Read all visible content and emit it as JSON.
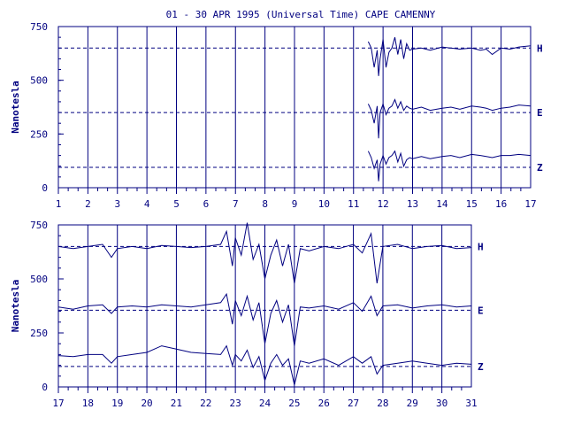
{
  "chart_data": {
    "type": "line",
    "title": "01 - 30 APR 1995 (Universal Time) CAPE CAMENNY",
    "ylabel": "Nanotesla",
    "color": "#000080",
    "panels": [
      {
        "xlim": [
          1,
          17
        ],
        "ylim": [
          0,
          750
        ],
        "x_ticks": [
          1,
          2,
          3,
          4,
          5,
          6,
          7,
          8,
          9,
          10,
          11,
          12,
          13,
          14,
          15,
          16,
          17
        ],
        "y_ticks": [
          0,
          250,
          500,
          750
        ],
        "baselines": [
          {
            "name": "H",
            "value": 650
          },
          {
            "name": "E",
            "value": 350
          },
          {
            "name": "Z",
            "value": 95
          }
        ],
        "series": [
          {
            "name": "H",
            "x": [
              11.5,
              11.6,
              11.7,
              11.8,
              11.85,
              11.9,
              12.0,
              12.1,
              12.2,
              12.3,
              12.4,
              12.5,
              12.6,
              12.7,
              12.8,
              12.9,
              13.0,
              13.3,
              13.6,
              14.0,
              14.3,
              14.6,
              15.0,
              15.3,
              15.5,
              15.7,
              16.0,
              16.3,
              16.6,
              17.0
            ],
            "y": [
              680,
              650,
              560,
              640,
              520,
              600,
              690,
              560,
              630,
              650,
              700,
              620,
              690,
              600,
              670,
              640,
              645,
              650,
              640,
              655,
              650,
              645,
              650,
              640,
              645,
              620,
              650,
              645,
              655,
              660
            ]
          },
          {
            "name": "E",
            "x": [
              11.5,
              11.6,
              11.7,
              11.8,
              11.85,
              11.9,
              12.0,
              12.1,
              12.2,
              12.3,
              12.4,
              12.5,
              12.6,
              12.7,
              12.8,
              12.9,
              13.0,
              13.3,
              13.6,
              14.0,
              14.3,
              14.6,
              15.0,
              15.3,
              15.5,
              15.7,
              16.0,
              16.3,
              16.6,
              17.0
            ],
            "y": [
              390,
              360,
              300,
              380,
              230,
              350,
              390,
              340,
              370,
              380,
              410,
              370,
              400,
              360,
              380,
              370,
              365,
              375,
              360,
              370,
              375,
              365,
              380,
              375,
              370,
              360,
              370,
              375,
              385,
              380
            ]
          },
          {
            "name": "Z",
            "x": [
              11.5,
              11.6,
              11.7,
              11.8,
              11.85,
              11.9,
              12.0,
              12.1,
              12.2,
              12.3,
              12.4,
              12.5,
              12.6,
              12.7,
              12.8,
              12.9,
              13.0,
              13.3,
              13.6,
              14.0,
              14.3,
              14.6,
              15.0,
              15.3,
              15.5,
              15.7,
              16.0,
              16.3,
              16.6,
              17.0
            ],
            "y": [
              170,
              140,
              90,
              130,
              30,
              110,
              150,
              110,
              140,
              150,
              170,
              120,
              160,
              100,
              130,
              140,
              135,
              145,
              135,
              145,
              150,
              140,
              155,
              150,
              145,
              140,
              150,
              150,
              155,
              150
            ]
          }
        ]
      },
      {
        "xlim": [
          17,
          31
        ],
        "ylim": [
          0,
          750
        ],
        "x_ticks": [
          17,
          18,
          19,
          20,
          21,
          22,
          23,
          24,
          25,
          26,
          27,
          28,
          29,
          30,
          31
        ],
        "y_ticks": [
          0,
          250,
          500,
          750
        ],
        "baselines": [
          {
            "name": "H",
            "value": 650
          },
          {
            "name": "E",
            "value": 355
          },
          {
            "name": "Z",
            "value": 95
          }
        ],
        "series": [
          {
            "name": "H",
            "x": [
              17.0,
              17.5,
              18.0,
              18.5,
              18.8,
              19.0,
              19.5,
              20.0,
              20.5,
              21.0,
              21.5,
              22.0,
              22.5,
              22.7,
              22.9,
              23.0,
              23.2,
              23.4,
              23.6,
              23.8,
              24.0,
              24.2,
              24.4,
              24.6,
              24.8,
              25.0,
              25.2,
              25.5,
              26.0,
              26.5,
              27.0,
              27.3,
              27.6,
              27.8,
              28.0,
              28.5,
              29.0,
              29.5,
              30.0,
              30.5,
              31.0
            ],
            "y": [
              650,
              640,
              650,
              660,
              600,
              640,
              650,
              640,
              655,
              650,
              645,
              650,
              660,
              720,
              560,
              690,
              610,
              760,
              590,
              660,
              500,
              610,
              680,
              560,
              660,
              480,
              640,
              630,
              650,
              640,
              660,
              620,
              710,
              480,
              650,
              660,
              640,
              650,
              655,
              640,
              645
            ]
          },
          {
            "name": "E",
            "x": [
              17.0,
              17.5,
              18.0,
              18.5,
              18.8,
              19.0,
              19.5,
              20.0,
              20.5,
              21.0,
              21.5,
              22.0,
              22.5,
              22.7,
              22.9,
              23.0,
              23.2,
              23.4,
              23.6,
              23.8,
              24.0,
              24.2,
              24.4,
              24.6,
              24.8,
              25.0,
              25.2,
              25.5,
              26.0,
              26.5,
              27.0,
              27.3,
              27.6,
              27.8,
              28.0,
              28.5,
              29.0,
              29.5,
              30.0,
              30.5,
              31.0
            ],
            "y": [
              370,
              360,
              375,
              380,
              340,
              370,
              375,
              370,
              380,
              375,
              370,
              380,
              390,
              430,
              290,
              400,
              330,
              420,
              310,
              390,
              200,
              340,
              400,
              300,
              380,
              190,
              370,
              365,
              375,
              360,
              390,
              350,
              420,
              330,
              375,
              380,
              365,
              375,
              380,
              370,
              375
            ]
          },
          {
            "name": "Z",
            "x": [
              17.0,
              17.5,
              18.0,
              18.5,
              18.8,
              19.0,
              19.5,
              20.0,
              20.5,
              21.0,
              21.5,
              22.0,
              22.5,
              22.7,
              22.9,
              23.0,
              23.2,
              23.4,
              23.6,
              23.8,
              24.0,
              24.2,
              24.4,
              24.6,
              24.8,
              25.0,
              25.2,
              25.5,
              26.0,
              26.5,
              27.0,
              27.3,
              27.6,
              27.8,
              28.0,
              28.5,
              29.0,
              29.5,
              30.0,
              30.5,
              31.0
            ],
            "y": [
              145,
              140,
              150,
              150,
              110,
              140,
              150,
              160,
              190,
              175,
              160,
              155,
              150,
              190,
              100,
              150,
              120,
              170,
              90,
              140,
              30,
              110,
              150,
              100,
              130,
              10,
              120,
              110,
              130,
              100,
              140,
              110,
              140,
              60,
              100,
              110,
              120,
              110,
              100,
              110,
              105
            ]
          }
        ]
      }
    ]
  }
}
